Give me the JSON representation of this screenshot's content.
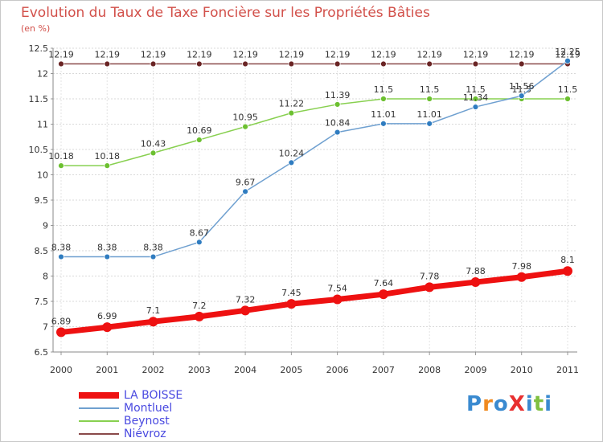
{
  "chart_data": {
    "type": "line",
    "title": "Evolution du Taux de Taxe Foncière sur les Propriétés Bâties",
    "subtitle": "(en %)",
    "categories": [
      "2000",
      "2001",
      "2002",
      "2003",
      "2004",
      "2005",
      "2006",
      "2007",
      "2008",
      "2009",
      "2010",
      "2011"
    ],
    "ylim": [
      6.5,
      12.5
    ],
    "yticks": [
      "6.5",
      "7",
      "7.5",
      "8",
      "8.5",
      "9",
      "9.5",
      "10",
      "10.5",
      "11",
      "11.5",
      "12",
      "12.5"
    ],
    "grid": true,
    "legend_placement": "bottom-left",
    "series": [
      {
        "name": "LA BOISSE",
        "color": "#ee1111",
        "values": [
          6.89,
          6.99,
          7.1,
          7.2,
          7.32,
          7.45,
          7.54,
          7.64,
          7.78,
          7.88,
          7.98,
          8.1
        ],
        "labels": [
          "6.89",
          "6.99",
          "7.1",
          "7.2",
          "7.32",
          "7.45",
          "7.54",
          "7.64",
          "7.78",
          "7.88",
          "7.98",
          "8.1"
        ]
      },
      {
        "name": "Montluel",
        "color": "#6fa0d0",
        "marker": "#2f7cc0",
        "values": [
          8.38,
          8.38,
          8.38,
          8.67,
          9.67,
          10.24,
          10.84,
          11.01,
          11.01,
          11.34,
          11.56,
          12.25
        ],
        "labels": [
          "8.38",
          "8.38",
          "8.38",
          "8.67",
          "9.67",
          "10.24",
          "10.84",
          "11.01",
          "11.01",
          "11.34",
          "11.56",
          "12.25"
        ]
      },
      {
        "name": "Beynost",
        "color": "#88d050",
        "marker": "#6cc030",
        "values": [
          10.18,
          10.18,
          10.43,
          10.69,
          10.95,
          11.22,
          11.39,
          11.5,
          11.5,
          11.5,
          11.5,
          11.5
        ],
        "labels": [
          "10.18",
          "10.18",
          "10.43",
          "10.69",
          "10.95",
          "11.22",
          "11.39",
          "11.5",
          "11.5",
          "11.5",
          "11.5",
          "11.5"
        ]
      },
      {
        "name": "Niévroz",
        "color": "#8a4a4a",
        "marker": "#6a2424",
        "values": [
          12.19,
          12.19,
          12.19,
          12.19,
          12.19,
          12.19,
          12.19,
          12.19,
          12.19,
          12.19,
          12.19,
          12.19
        ],
        "labels": [
          "12.19",
          "12.19",
          "12.19",
          "12.19",
          "12.19",
          "12.19",
          "12.19",
          "12.19",
          "12.19",
          "12.19",
          "12.19",
          "12.19"
        ]
      }
    ]
  },
  "logo": {
    "text": "ProXiti"
  }
}
